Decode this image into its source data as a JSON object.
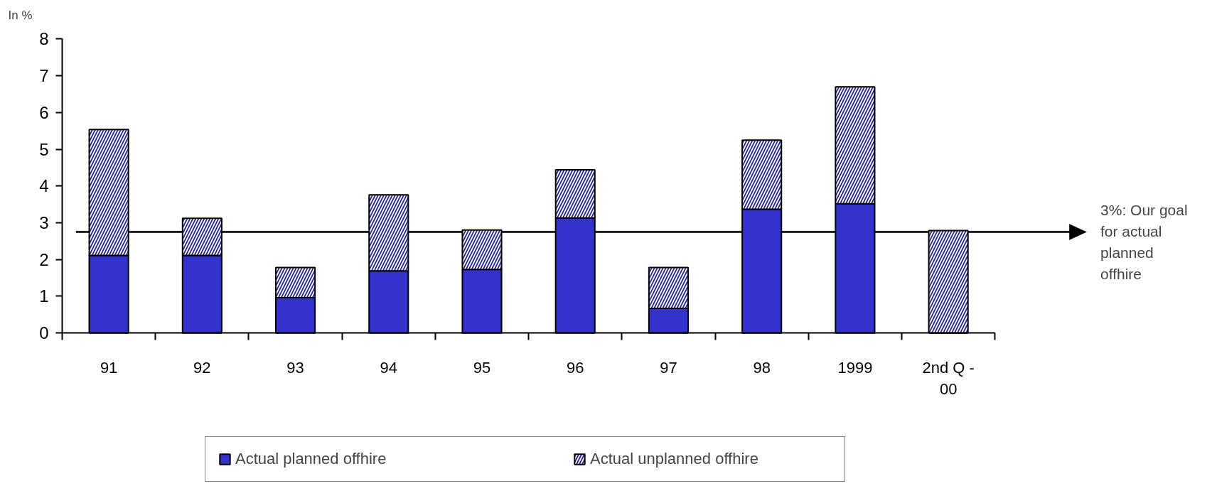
{
  "chart_data": {
    "type": "bar",
    "stacked": true,
    "ylabel": "In %",
    "categories": [
      "91",
      "92",
      "93",
      "94",
      "95",
      "96",
      "97",
      "98",
      "1999",
      "2nd Q - 00"
    ],
    "series": [
      {
        "name": "Actual planned offhire",
        "color": "#3333cc",
        "values": [
          2.11,
          2.11,
          0.96,
          1.69,
          1.73,
          3.13,
          0.67,
          3.37,
          3.52,
          null
        ]
      },
      {
        "name": "Actual unplanned offhire",
        "color": "#22228a",
        "values": [
          3.43,
          1.01,
          0.82,
          2.07,
          1.07,
          1.31,
          1.11,
          1.88,
          3.18,
          2.79
        ]
      }
    ],
    "ylim": [
      0,
      8
    ],
    "yticks": [
      0,
      1,
      2,
      3,
      4,
      5,
      6,
      7,
      8
    ],
    "grid": false,
    "legend": "bottom",
    "ref_lines": [
      {
        "axis": "y",
        "value": 2.75,
        "label": "3%: Our goal for actual planned offhire"
      }
    ]
  }
}
